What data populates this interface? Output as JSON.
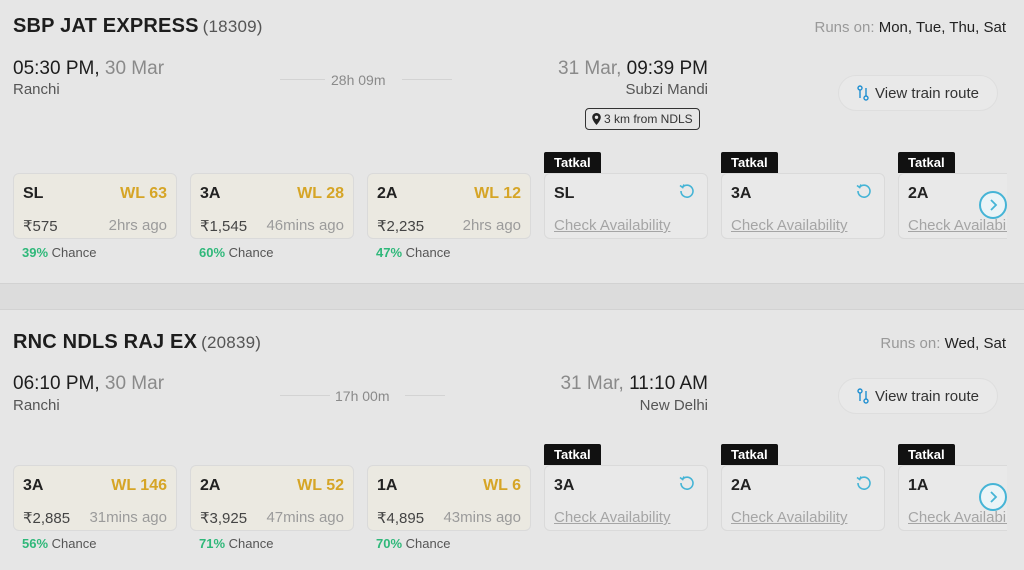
{
  "trains": [
    {
      "name": "SBP JAT EXPRESS",
      "number": "(18309)",
      "runs_label": "Runs on:",
      "runs_days": "Mon, Tue, Thu, Sat",
      "departure": {
        "time": "05:30 PM,",
        "date": "30 Mar",
        "station": "Ranchi"
      },
      "arrival": {
        "date": "31 Mar,",
        "time": "09:39 PM",
        "station": "Subzi Mandi"
      },
      "duration": "28h 09m",
      "distance_badge": "3 km from NDLS",
      "route_button": "View train route",
      "classes": [
        {
          "cls": "SL",
          "status": "WL 63",
          "fare": "₹575",
          "ago": "2hrs ago",
          "chance_pct": "39%",
          "chance_label": "Chance"
        },
        {
          "cls": "3A",
          "status": "WL 28",
          "fare": "₹1,545",
          "ago": "46mins ago",
          "chance_pct": "60%",
          "chance_label": "Chance"
        },
        {
          "cls": "2A",
          "status": "WL 12",
          "fare": "₹2,235",
          "ago": "2hrs ago",
          "chance_pct": "47%",
          "chance_label": "Chance"
        }
      ],
      "tatkal": [
        {
          "tag": "Tatkal",
          "cls": "SL",
          "check": "Check Availability"
        },
        {
          "tag": "Tatkal",
          "cls": "3A",
          "check": "Check Availability"
        },
        {
          "tag": "Tatkal",
          "cls": "2A",
          "check": "Check Availability"
        }
      ]
    },
    {
      "name": "RNC NDLS RAJ EX",
      "number": "(20839)",
      "runs_label": "Runs on:",
      "runs_days": "Wed, Sat",
      "departure": {
        "time": "06:10 PM,",
        "date": "30 Mar",
        "station": "Ranchi"
      },
      "arrival": {
        "date": "31 Mar,",
        "time": "11:10 AM",
        "station": "New Delhi"
      },
      "duration": "17h 00m",
      "route_button": "View train route",
      "classes": [
        {
          "cls": "3A",
          "status": "WL 146",
          "fare": "₹2,885",
          "ago": "31mins ago",
          "chance_pct": "56%",
          "chance_label": "Chance"
        },
        {
          "cls": "2A",
          "status": "WL 52",
          "fare": "₹3,925",
          "ago": "47mins ago",
          "chance_pct": "71%",
          "chance_label": "Chance"
        },
        {
          "cls": "1A",
          "status": "WL 6",
          "fare": "₹4,895",
          "ago": "43mins ago",
          "chance_pct": "70%",
          "chance_label": "Chance"
        }
      ],
      "tatkal": [
        {
          "tag": "Tatkal",
          "cls": "3A",
          "check": "Check Availability"
        },
        {
          "tag": "Tatkal",
          "cls": "2A",
          "check": "Check Availability"
        },
        {
          "tag": "Tatkal",
          "cls": "1A",
          "check": "Check Availability"
        }
      ]
    }
  ],
  "colors": {
    "waitlist": "#d6a526",
    "chance": "#2fb87a",
    "accent": "#45b4d6",
    "tatkal_bg": "#111111"
  },
  "icons": {
    "route": "route-icon",
    "location": "location-pin-icon",
    "refresh": "refresh-icon",
    "next": "chevron-right-icon"
  }
}
